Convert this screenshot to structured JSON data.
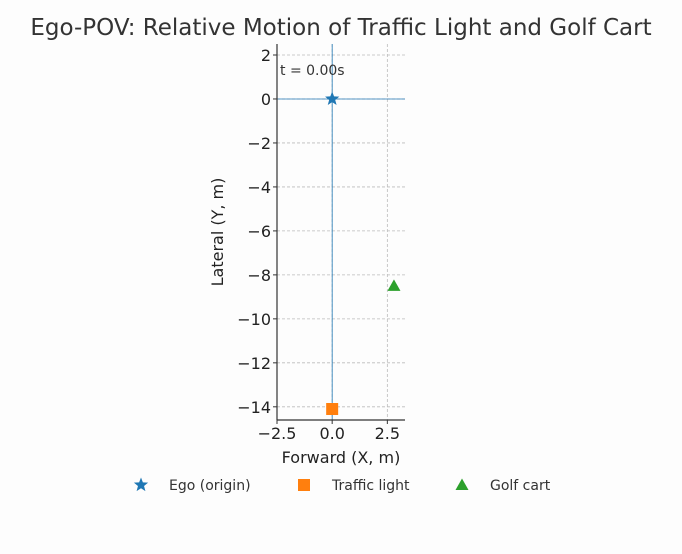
{
  "chart_data": {
    "type": "scatter",
    "title": "Ego-POV: Relative Motion of Traffic Light and Golf Cart",
    "xlabel": "Forward (X, m)",
    "ylabel": "Lateral (Y, m)",
    "annotation": "t = 0.00s",
    "xlim": [
      -2.5,
      3.3
    ],
    "ylim": [
      -14.6,
      2.5
    ],
    "xticks": [
      -2.5,
      0.0,
      2.5
    ],
    "xtick_labels": [
      "−2.5",
      "0.0",
      "2.5"
    ],
    "yticks": [
      2,
      0,
      -2,
      -4,
      -6,
      -8,
      -10,
      -12,
      -14
    ],
    "ytick_labels": [
      "2",
      "0",
      "−2",
      "−4",
      "−6",
      "−8",
      "−10",
      "−12",
      "−14"
    ],
    "grid": true,
    "legend_position": "bottom",
    "series": [
      {
        "name": "Ego (origin)",
        "marker": "star",
        "color": "#1f77b4",
        "x": [
          0.0
        ],
        "y": [
          0.0
        ]
      },
      {
        "name": "Traffic light",
        "marker": "square",
        "color": "#ff7f0e",
        "x": [
          0.0
        ],
        "y": [
          -14.1
        ]
      },
      {
        "name": "Golf cart",
        "marker": "triangle",
        "color": "#2ca02c",
        "x": [
          2.8
        ],
        "y": [
          -8.5
        ]
      }
    ]
  }
}
